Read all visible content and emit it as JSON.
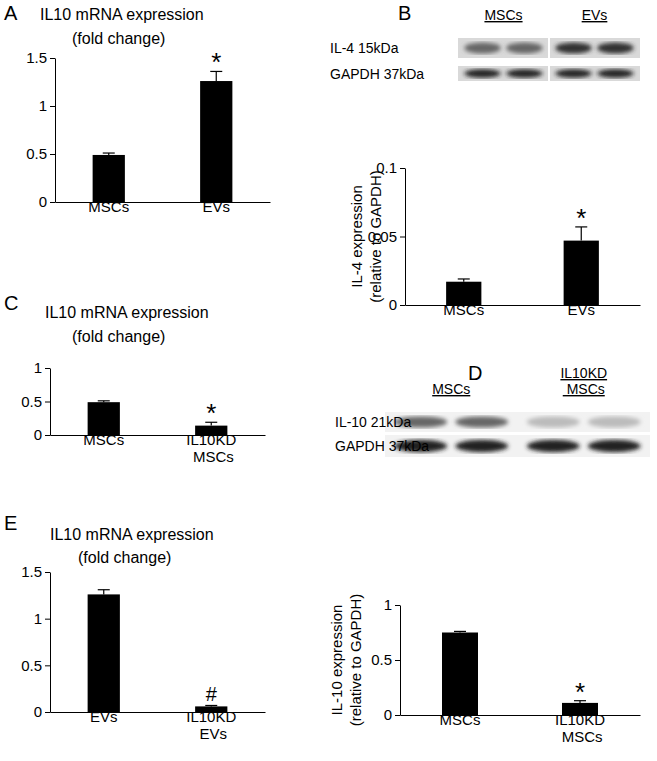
{
  "chart_data": [
    {
      "type": "bar",
      "panel": "A",
      "title": "IL10 mRNA expression",
      "subtitle": "(fold change)",
      "categories": [
        "MSCs",
        "EVs"
      ],
      "values": [
        0.49,
        1.26
      ],
      "errors": [
        0.02,
        0.1
      ],
      "significance": [
        null,
        "*"
      ],
      "color": "#000000",
      "ylim": [
        0,
        1.5
      ],
      "yticks": [
        0,
        0.5,
        1,
        1.5
      ]
    },
    {
      "type": "bar",
      "panel": "B",
      "y_label": [
        "IL-4 expression",
        "(relative to GAPDH)"
      ],
      "blot": {
        "lanes": [
          "MSCs",
          "EVs"
        ],
        "rows": [
          "IL-4 15kDa",
          "GAPDH 37kDa"
        ]
      },
      "categories": [
        "MSCs",
        "EVs"
      ],
      "values": [
        0.017,
        0.047
      ],
      "errors": [
        0.002,
        0.01
      ],
      "significance": [
        null,
        "*"
      ],
      "color": "#000000",
      "ylim": [
        0,
        0.1
      ],
      "yticks": [
        0,
        0.05,
        0.1
      ]
    },
    {
      "type": "bar",
      "panel": "C",
      "title": "IL10 mRNA expression",
      "subtitle": "(fold change)",
      "categories": [
        "MSCs",
        "IL10KD MSCs"
      ],
      "values": [
        0.49,
        0.14
      ],
      "errors": [
        0.02,
        0.05
      ],
      "significance": [
        null,
        "*"
      ],
      "color": "#000000",
      "ylim": [
        0,
        1
      ],
      "yticks": [
        0,
        0.5,
        1
      ]
    },
    {
      "type": "bar",
      "panel": "D",
      "y_label": [
        "IL-10 expression",
        "(relative to GAPDH)"
      ],
      "blot": {
        "lanes": [
          "MSCs",
          "IL10KD MSCs"
        ],
        "rows": [
          "IL-10 21kDa",
          "GAPDH 37kDa"
        ]
      },
      "categories": [
        "MSCs",
        "IL10KD MSCs"
      ],
      "values": [
        0.75,
        0.11
      ],
      "errors": [
        0.01,
        0.02
      ],
      "significance": [
        null,
        "*"
      ],
      "color": "#000000",
      "ylim": [
        0,
        1
      ],
      "yticks": [
        0,
        0.5,
        1
      ]
    },
    {
      "type": "bar",
      "panel": "E",
      "title": "IL10 mRNA expression",
      "subtitle": "(fold change)",
      "categories": [
        "EVs",
        "IL10KD EVs"
      ],
      "values": [
        1.26,
        0.06
      ],
      "errors": [
        0.05,
        0.01
      ],
      "significance": [
        null,
        "#"
      ],
      "color": "#000000",
      "ylim": [
        0,
        1.5
      ],
      "yticks": [
        0,
        0.5,
        1,
        1.5
      ]
    }
  ]
}
